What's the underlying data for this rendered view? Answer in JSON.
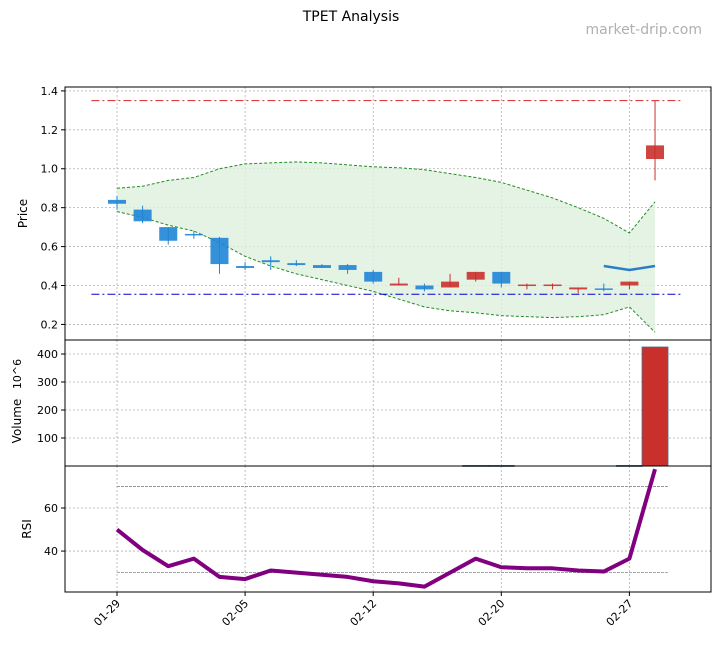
{
  "chart_data": {
    "title": "TPET Analysis",
    "watermark": "market-drip.com",
    "dates": [
      "01-29",
      "01-30",
      "01-31",
      "02-01",
      "02-02",
      "02-05",
      "02-06",
      "02-07",
      "02-08",
      "02-09",
      "02-12",
      "02-13",
      "02-14",
      "02-15",
      "02-16",
      "02-20",
      "02-21",
      "02-22",
      "02-23",
      "02-26",
      "02-27",
      "02-28"
    ],
    "xticks": [
      "01-29",
      "02-05",
      "02-12",
      "02-20",
      "02-27"
    ],
    "price": {
      "type": "candlestick",
      "ylabel": "Price",
      "ylim": [
        0.12,
        1.42
      ],
      "yticks": [
        0.2,
        0.4,
        0.6,
        0.8,
        1.0,
        1.2,
        1.4
      ],
      "ytick_labels": [
        "0.2",
        "0.4",
        "0.6",
        "0.8",
        "1.0",
        "1.2",
        "1.4"
      ],
      "up_color": "#c9302c",
      "down_color": "#1f85d6",
      "open": [
        0.84,
        0.79,
        0.7,
        0.665,
        0.645,
        0.5,
        0.53,
        0.515,
        0.505,
        0.505,
        0.47,
        0.4,
        0.4,
        0.39,
        0.43,
        0.47,
        0.4,
        0.4,
        0.38,
        0.385,
        0.4,
        1.05
      ],
      "high": [
        0.86,
        0.81,
        0.7,
        0.68,
        0.65,
        0.52,
        0.55,
        0.53,
        0.51,
        0.51,
        0.48,
        0.44,
        0.41,
        0.46,
        0.47,
        0.47,
        0.41,
        0.41,
        0.39,
        0.41,
        0.42,
        1.35
      ],
      "low": [
        0.79,
        0.72,
        0.61,
        0.64,
        0.46,
        0.48,
        0.48,
        0.5,
        0.49,
        0.46,
        0.41,
        0.4,
        0.37,
        0.39,
        0.42,
        0.39,
        0.38,
        0.38,
        0.36,
        0.37,
        0.38,
        0.94
      ],
      "close": [
        0.82,
        0.73,
        0.63,
        0.66,
        0.51,
        0.49,
        0.52,
        0.505,
        0.49,
        0.48,
        0.42,
        0.41,
        0.38,
        0.42,
        0.47,
        0.41,
        0.405,
        0.405,
        0.39,
        0.38,
        0.42,
        1.12
      ],
      "band_upper": [
        0.9,
        0.91,
        0.94,
        0.955,
        1.0,
        1.025,
        1.03,
        1.035,
        1.03,
        1.02,
        1.01,
        1.005,
        0.995,
        0.975,
        0.955,
        0.93,
        0.89,
        0.85,
        0.8,
        0.745,
        0.67,
        0.83
      ],
      "band_lower": [
        0.78,
        0.75,
        0.71,
        0.68,
        0.62,
        0.55,
        0.5,
        0.46,
        0.43,
        0.4,
        0.37,
        0.33,
        0.29,
        0.27,
        0.26,
        0.245,
        0.24,
        0.235,
        0.24,
        0.25,
        0.29,
        0.16
      ],
      "band_color": "#228b22",
      "band_fill": "#dff0df",
      "ma_line": {
        "start_index": 19,
        "values": [
          0.5,
          0.48,
          0.5
        ],
        "color": "#2a7fc4"
      },
      "resistance": {
        "value": 1.35,
        "color": "#d62728"
      },
      "support": {
        "value": 0.355,
        "color": "#0000cc"
      }
    },
    "volume": {
      "type": "bar",
      "ylabel": "Volume",
      "ylabel_exponent": "10^6",
      "ylim": [
        0,
        450
      ],
      "yticks": [
        100,
        200,
        300,
        400
      ],
      "ytick_labels": [
        "100",
        "200",
        "300",
        "400"
      ],
      "values": [
        0,
        0,
        0,
        0,
        0,
        0,
        0,
        0,
        0,
        0,
        0,
        0,
        0,
        0,
        2,
        2,
        0,
        0,
        0,
        0,
        2,
        425
      ]
    },
    "rsi": {
      "type": "line",
      "ylabel": "RSI",
      "ylim": [
        21,
        79.5
      ],
      "yticks": [
        40,
        60
      ],
      "ytick_labels": [
        "40",
        "60"
      ],
      "values": [
        50,
        40.5,
        33,
        36.5,
        28,
        27,
        31,
        30,
        29,
        28,
        26,
        25,
        23.5,
        30,
        36.5,
        32.5,
        32,
        32,
        31,
        30.5,
        36.5,
        78
      ],
      "color": "#800080",
      "overbought": 70,
      "oversold": 30
    }
  }
}
